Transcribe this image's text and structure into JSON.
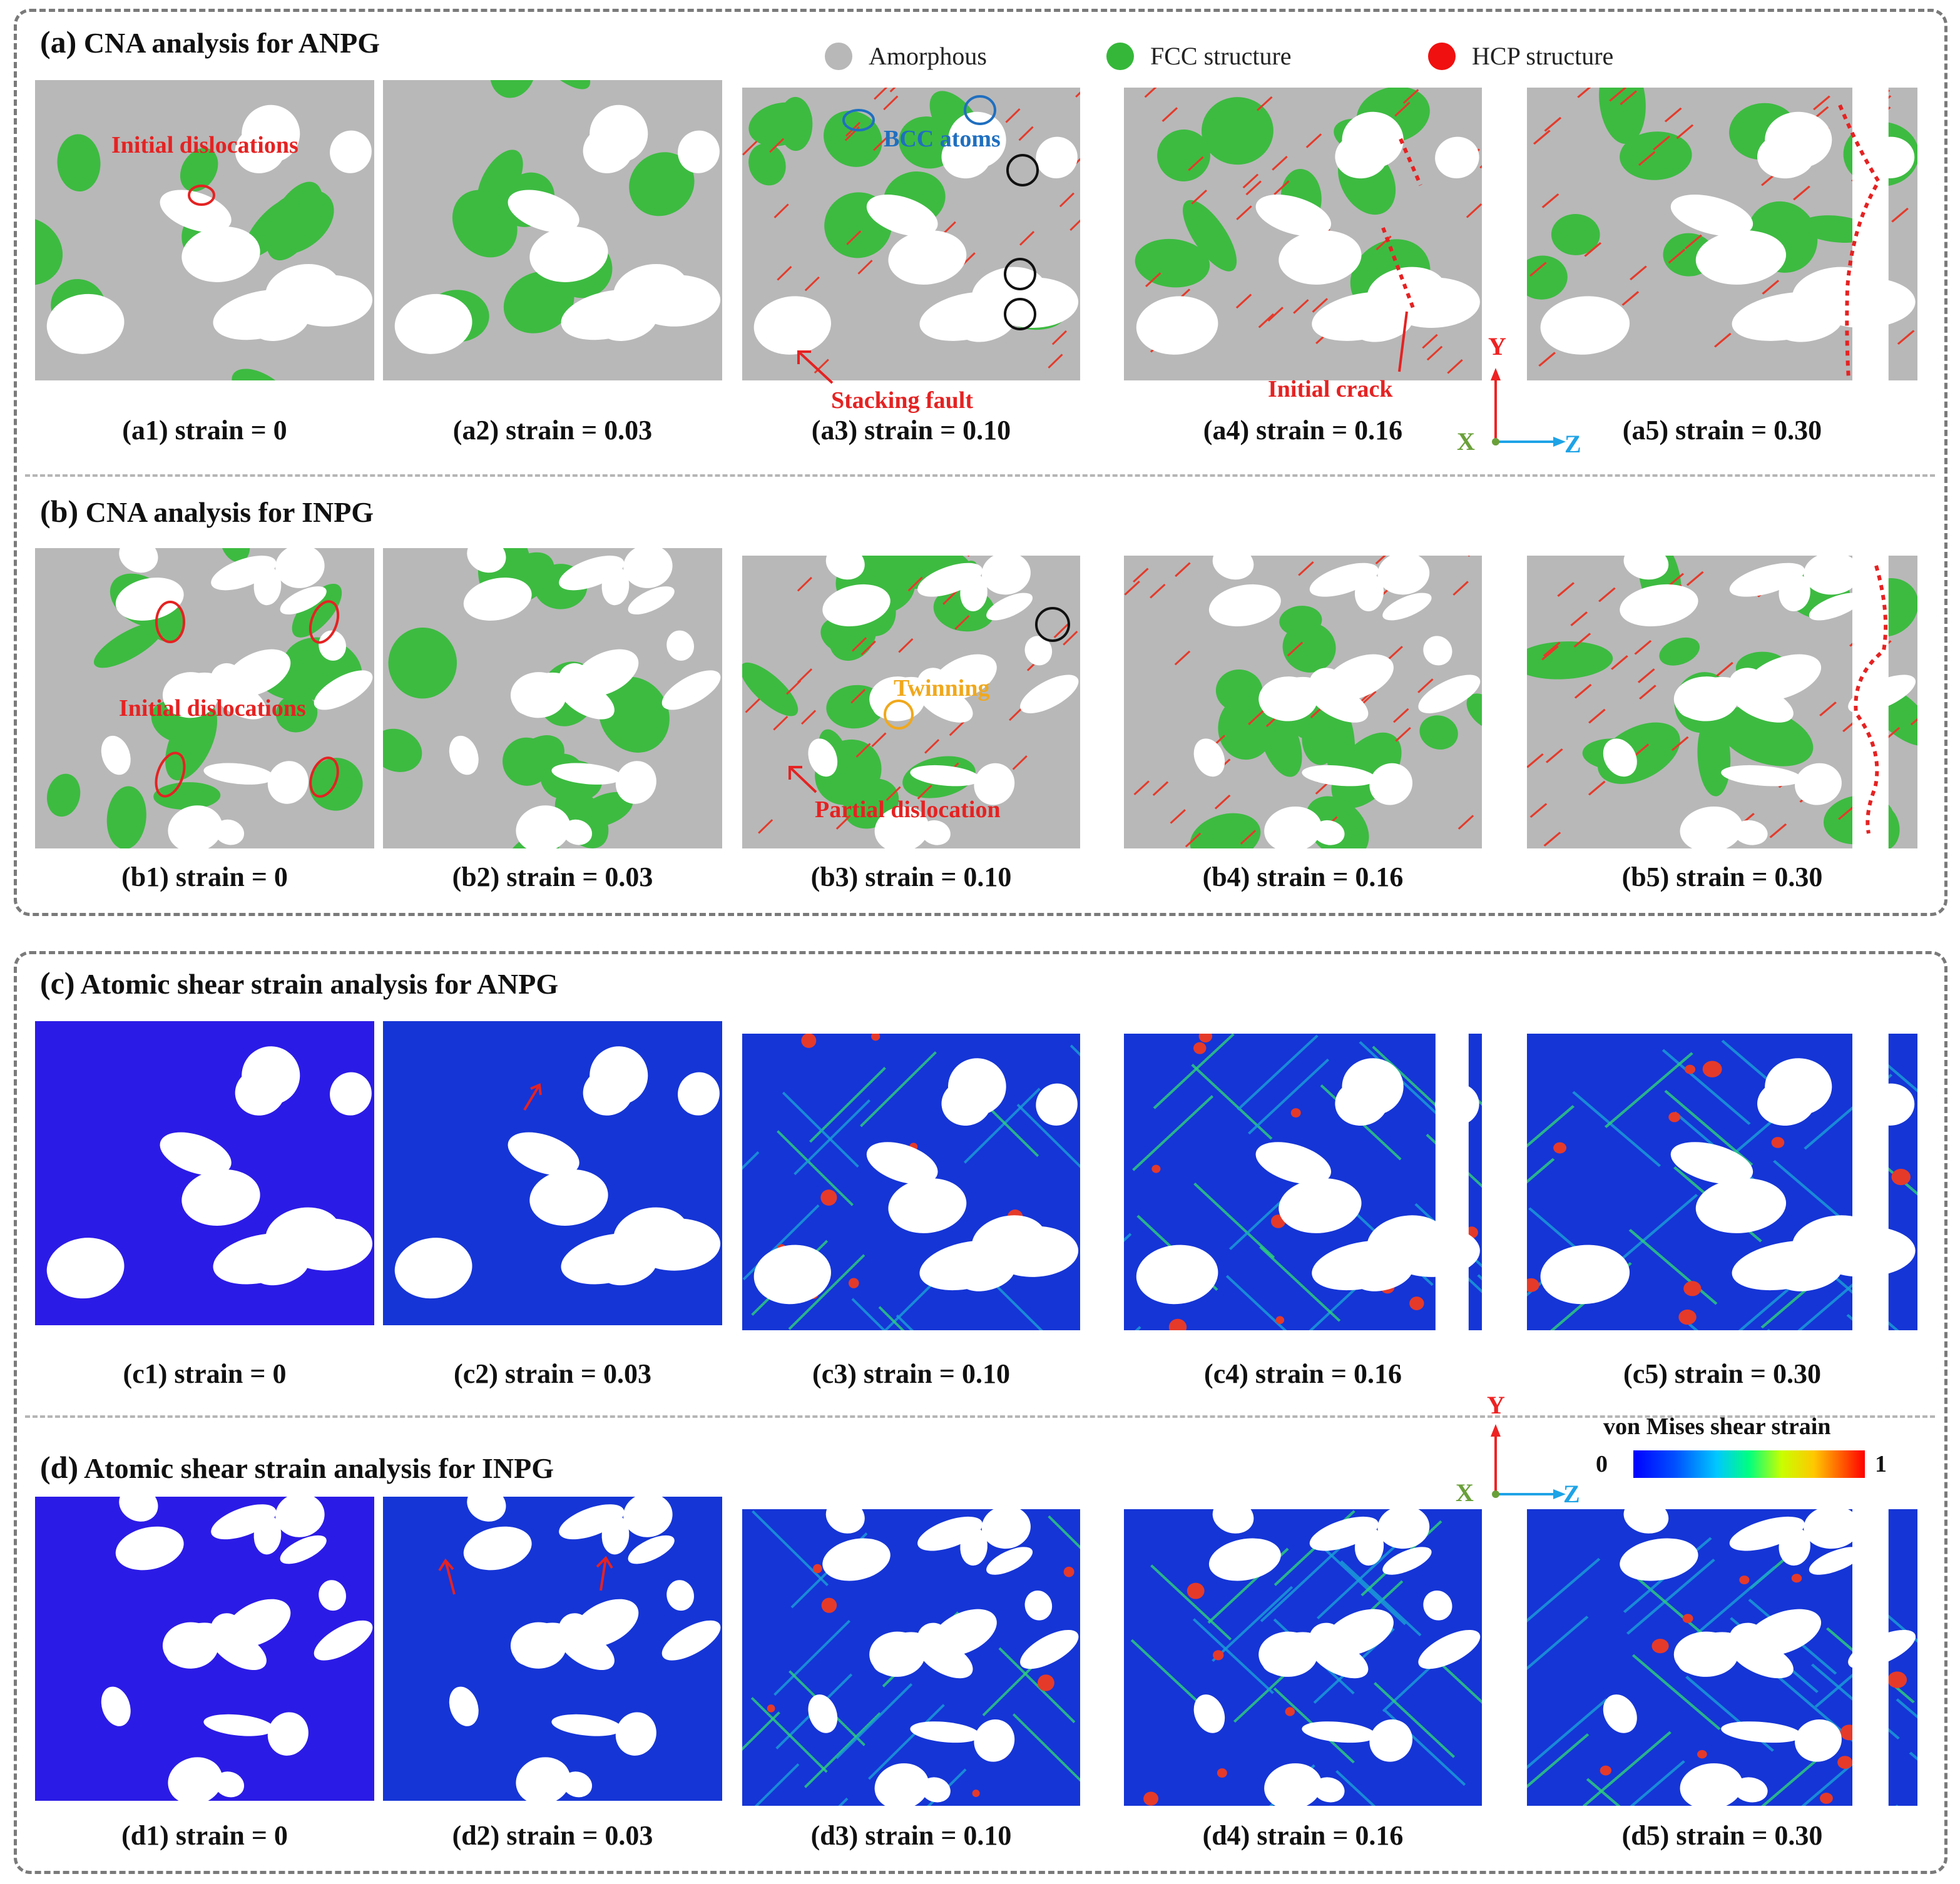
{
  "sections": {
    "a": {
      "label": "(a)",
      "title": "CNA analysis for ANPG"
    },
    "b": {
      "label": "(b)",
      "title": "CNA analysis for INPG"
    },
    "c": {
      "label": "(c)",
      "title": "Atomic shear strain analysis for ANPG"
    },
    "d": {
      "label": "(d)",
      "title": "Atomic shear strain analysis for INPG"
    }
  },
  "legend": {
    "amorphous": {
      "label": "Amorphous",
      "color": "#b8b8b8"
    },
    "fcc": {
      "label": "FCC structure",
      "color": "#35b83a"
    },
    "hcp": {
      "label": "HCP structure",
      "color": "#f01010"
    }
  },
  "captions": {
    "a": [
      "(a1) strain = 0",
      "(a2) strain = 0.03",
      "(a3) strain = 0.10",
      "(a4) strain = 0.16",
      "(a5) strain = 0.30"
    ],
    "b": [
      "(b1) strain = 0",
      "(b2) strain = 0.03",
      "(b3) strain = 0.10",
      "(b4) strain = 0.16",
      "(b5) strain = 0.30"
    ],
    "c": [
      "(c1) strain = 0",
      "(c2) strain = 0.03",
      "(c3) strain = 0.10",
      "(c4) strain = 0.16",
      "(c5) strain = 0.30"
    ],
    "d": [
      "(d1) strain = 0",
      "(d2) strain = 0.03",
      "(d3) strain = 0.10",
      "(d4) strain = 0.16",
      "(d5) strain = 0.30"
    ]
  },
  "annotations": {
    "initial_dislocations_a": "Initial dislocations",
    "bcc_atoms": "BCC atoms",
    "stacking_fault": "Stacking fault",
    "initial_crack": "Initial crack",
    "initial_dislocations_b": "Initial dislocations",
    "twinning": "Twinning",
    "partial_dislocation": "Partial dislocation"
  },
  "axes": {
    "y": "Y",
    "x": "X",
    "z": "Z"
  },
  "colorbar": {
    "title": "von Mises shear strain",
    "min": "0",
    "max": "1"
  },
  "colors": {
    "amorphous": "#b8b8b8",
    "fcc": "#3dbb41",
    "hcp": "#e53a2a",
    "strain_low": "#2b1be6",
    "strain_blue": "#1535d6",
    "annot_red": "#e52222",
    "annot_blue": "#1f6fc0",
    "annot_orange": "#f0a81c",
    "axis_y": "#e22",
    "axis_z": "#1ea3e6",
    "axis_x": "#6aa03a"
  }
}
